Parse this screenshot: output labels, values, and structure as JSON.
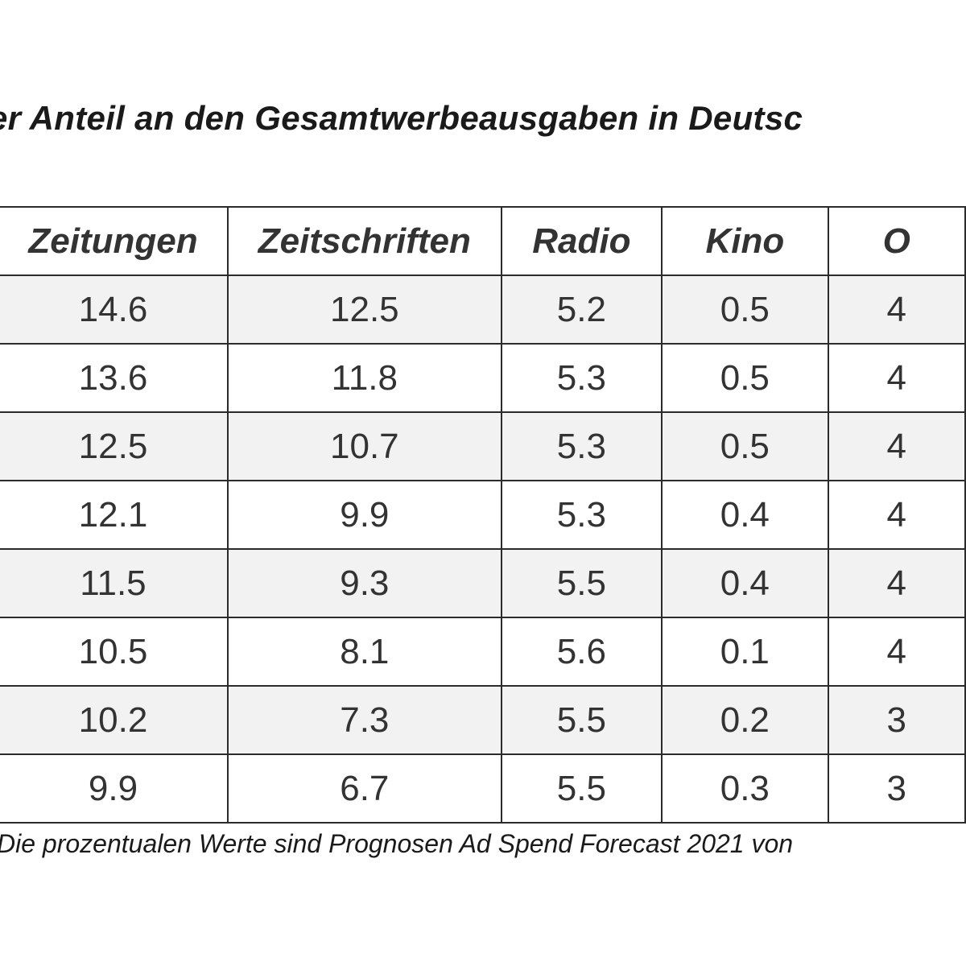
{
  "title": "der Anteil an den Gesamtwerbeausgaben in Deutsc",
  "table": {
    "headers": [
      "Zeitungen",
      "Zeitschriften",
      "Radio",
      "Kino",
      "O"
    ],
    "rows": [
      [
        "14.6",
        "12.5",
        "5.2",
        "0.5",
        "4"
      ],
      [
        "13.6",
        "11.8",
        "5.3",
        "0.5",
        "4"
      ],
      [
        "12.5",
        "10.7",
        "5.3",
        "0.5",
        "4"
      ],
      [
        "12.1",
        "9.9",
        "5.3",
        "0.4",
        "4"
      ],
      [
        "11.5",
        "9.3",
        "5.5",
        "0.4",
        "4"
      ],
      [
        "10.5",
        "8.1",
        "5.6",
        "0.1",
        "4"
      ],
      [
        "10.2",
        "7.3",
        "5.5",
        "0.2",
        "3"
      ],
      [
        "9.9",
        "6.7",
        "5.5",
        "0.3",
        "3"
      ]
    ]
  },
  "footnote": "Die prozentualen Werte sind Prognosen Ad Spend Forecast 2021 von"
}
